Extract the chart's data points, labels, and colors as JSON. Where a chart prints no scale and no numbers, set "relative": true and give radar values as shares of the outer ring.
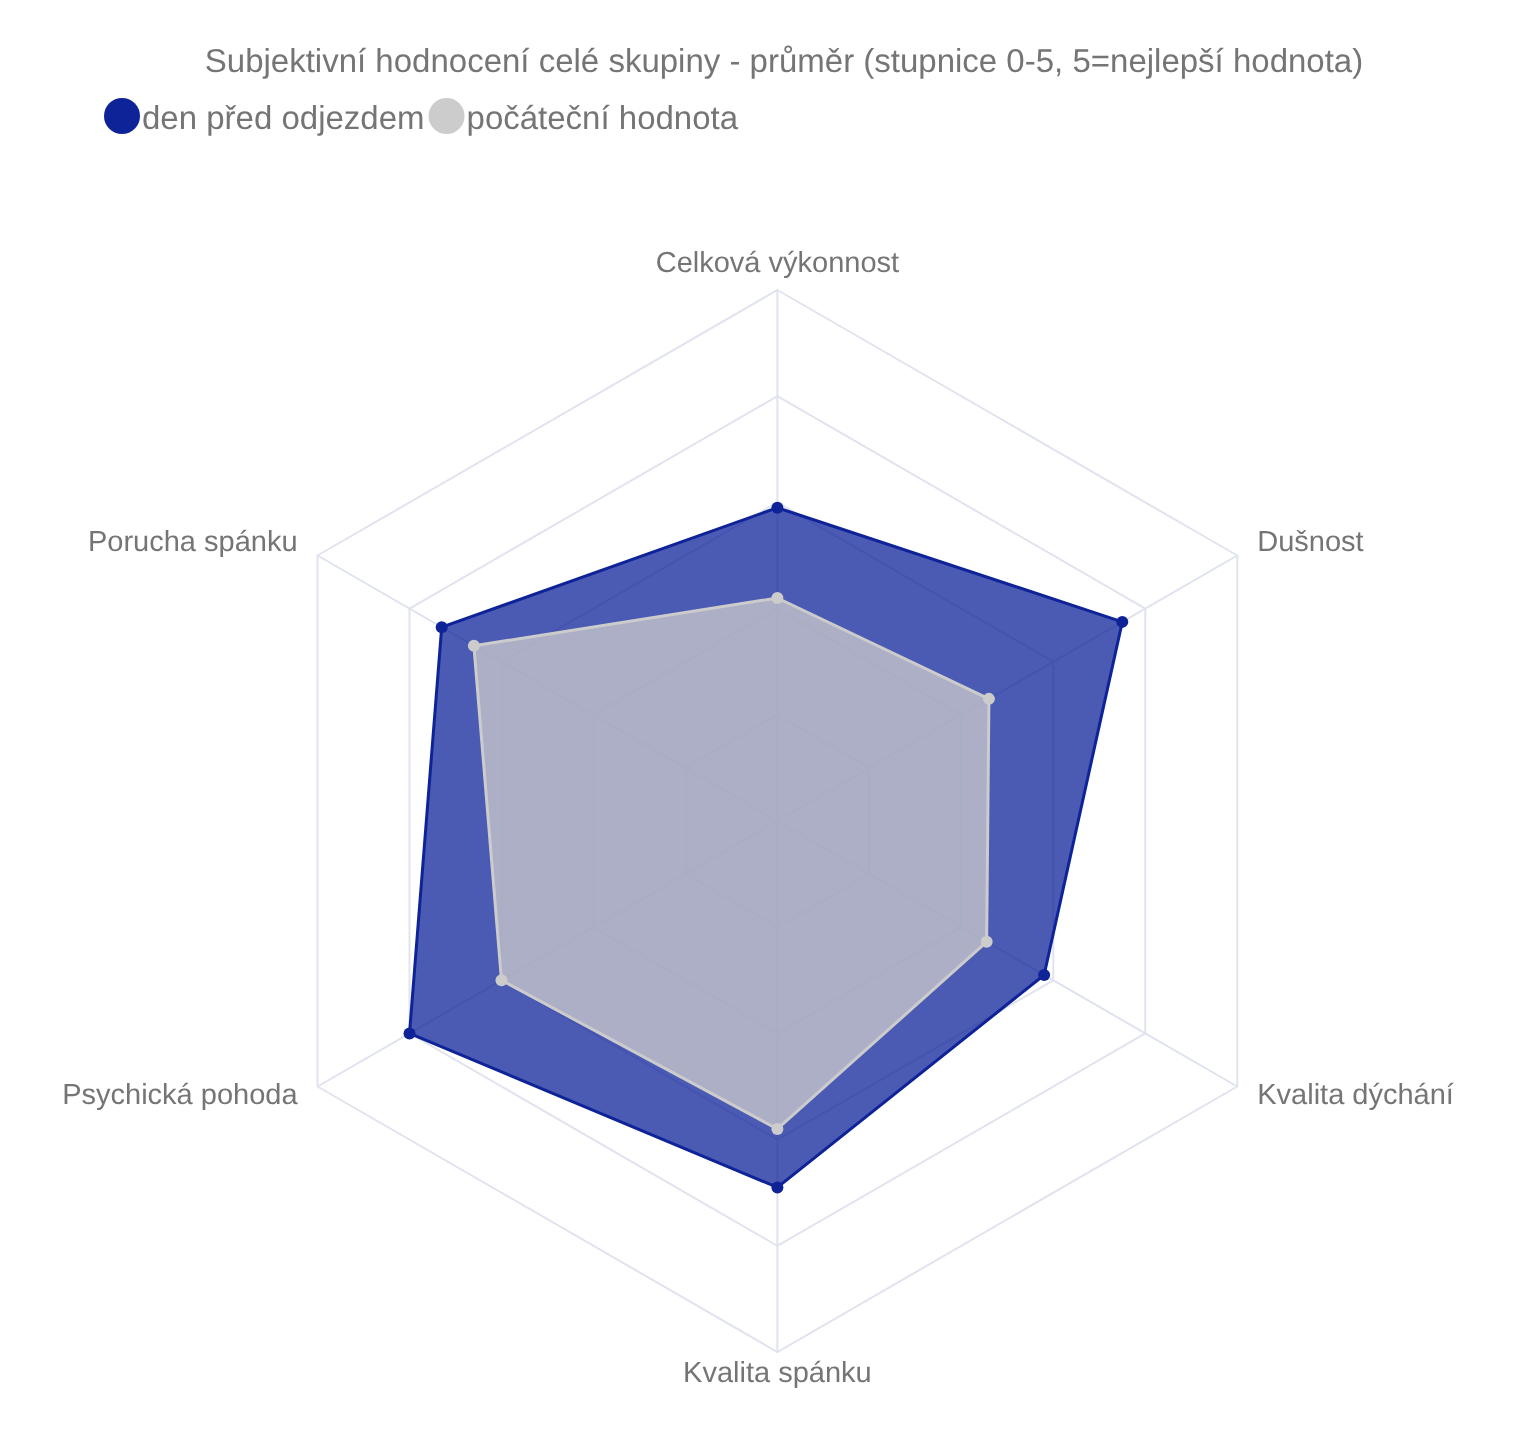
{
  "chart_data": {
    "type": "radar",
    "title": "Subjektivní hodnocení celé skupiny - průměr (stupnice 0-5, 5=nejlepší hodnota)",
    "categories": [
      "Celková výkonnost",
      "Dušnost",
      "Kvalita dýchání",
      "Kvalita spánku",
      "Psychická pohoda",
      "Porucha spánku"
    ],
    "relative": true,
    "series": [
      {
        "name": "den před odjezdem",
        "color": "#0f2399",
        "values": [
          0.59,
          0.75,
          0.58,
          0.69,
          0.8,
          0.73
        ]
      },
      {
        "name": "počáteční hodnota",
        "color": "#cccccc",
        "values": [
          0.42,
          0.46,
          0.455,
          0.58,
          0.6,
          0.66
        ]
      }
    ],
    "legend": "top left",
    "grid": true,
    "marker": "circle",
    "line_style": "solid"
  }
}
